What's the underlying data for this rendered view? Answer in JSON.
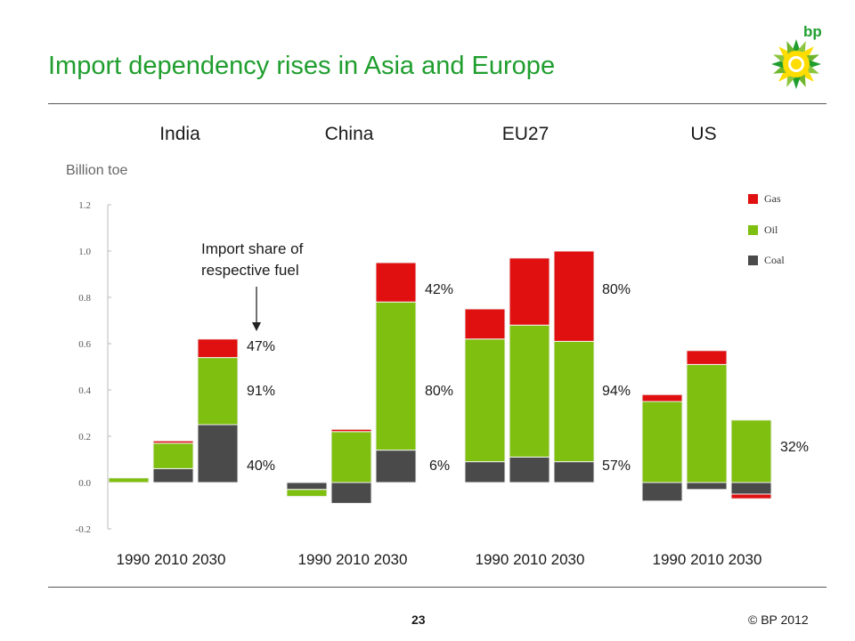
{
  "slide": {
    "title": "Import dependency rises in Asia and Europe",
    "unit_label": "Billion toe",
    "note": [
      "Import share of",
      "respective fuel"
    ],
    "page_number": "23",
    "copyright": "© BP 2012",
    "logo_text": "bp"
  },
  "colors": {
    "title": "#1f9e2e",
    "gas": "#e01010",
    "oil": "#7fbf10",
    "coal": "#4a4a4a"
  },
  "chart_data": {
    "type": "bar",
    "stacked": true,
    "ylabel": "Billion toe",
    "ylim": [
      -0.2,
      1.2
    ],
    "yticks": [
      "-0.2",
      "0.0",
      "0.2",
      "0.4",
      "0.6",
      "0.8",
      "1.0",
      "1.2"
    ],
    "ytick_values": [
      -0.2,
      0.0,
      0.2,
      0.4,
      0.6,
      0.8,
      1.0,
      1.2
    ],
    "legend": [
      "Gas",
      "Oil",
      "Coal"
    ],
    "legend_position": "top-right",
    "groups": [
      {
        "name": "India",
        "years": [
          "1990",
          "2010",
          "2030"
        ],
        "coal": [
          0.0,
          0.06,
          0.25
        ],
        "oil": [
          0.02,
          0.11,
          0.29
        ],
        "gas": [
          0.0,
          0.01,
          0.08
        ],
        "shares": [
          "47%",
          "91%",
          "40%"
        ]
      },
      {
        "name": "China",
        "years": [
          "1990",
          "2010",
          "2030"
        ],
        "coal": [
          -0.03,
          -0.09,
          0.14
        ],
        "oil": [
          -0.03,
          0.22,
          0.64
        ],
        "gas": [
          0.0,
          0.01,
          0.17
        ],
        "shares": [
          "42%",
          "80%",
          "6%"
        ]
      },
      {
        "name": "EU27",
        "years": [
          "1990",
          "2010",
          "2030"
        ],
        "coal": [
          0.09,
          0.11,
          0.09
        ],
        "oil": [
          0.53,
          0.57,
          0.52
        ],
        "gas": [
          0.13,
          0.29,
          0.39
        ],
        "shares": [
          "80%",
          "94%",
          "57%"
        ]
      },
      {
        "name": "US",
        "years": [
          "1990",
          "2010",
          "2030"
        ],
        "coal": [
          -0.08,
          -0.03,
          -0.05
        ],
        "oil": [
          0.35,
          0.51,
          0.27
        ],
        "gas": [
          0.03,
          0.06,
          -0.02
        ],
        "shares": [
          "32%"
        ]
      }
    ]
  }
}
